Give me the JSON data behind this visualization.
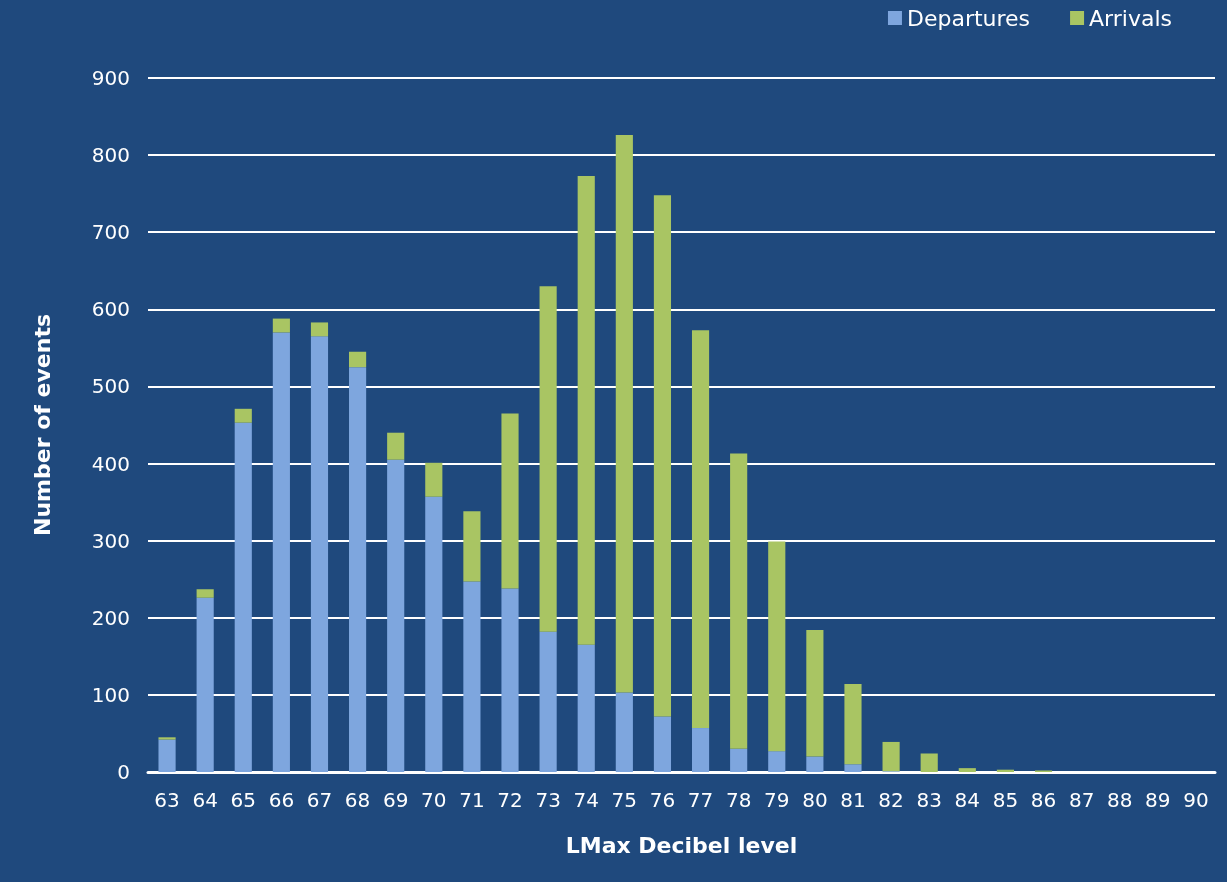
{
  "chart_data": {
    "type": "bar",
    "stacked": true,
    "xlabel": "LMax Decibel level",
    "ylabel": "Number of events",
    "categories": [
      "63",
      "64",
      "65",
      "66",
      "67",
      "68",
      "69",
      "70",
      "71",
      "72",
      "73",
      "74",
      "75",
      "76",
      "77",
      "78",
      "79",
      "80",
      "81",
      "82",
      "83",
      "84",
      "85",
      "86",
      "87",
      "88",
      "89",
      "90"
    ],
    "series": [
      {
        "name": "Departures",
        "color": "#7ea6de",
        "values": [
          42,
          226,
          453,
          570,
          565,
          525,
          405,
          357,
          247,
          238,
          182,
          165,
          103,
          72,
          57,
          30,
          27,
          20,
          10,
          1,
          0,
          0,
          0,
          0,
          0,
          0,
          0,
          0
        ]
      },
      {
        "name": "Arrivals",
        "color": "#a9c563",
        "values": [
          3,
          11,
          18,
          18,
          18,
          20,
          35,
          44,
          91,
          227,
          448,
          608,
          723,
          676,
          516,
          383,
          272,
          164,
          104,
          38,
          24,
          5,
          3,
          2,
          0,
          0,
          0,
          0
        ]
      }
    ],
    "ylim": [
      0,
      900
    ],
    "yticks": [
      0,
      100,
      200,
      300,
      400,
      500,
      600,
      700,
      800,
      900
    ],
    "grid": "y",
    "legend": "top right"
  }
}
